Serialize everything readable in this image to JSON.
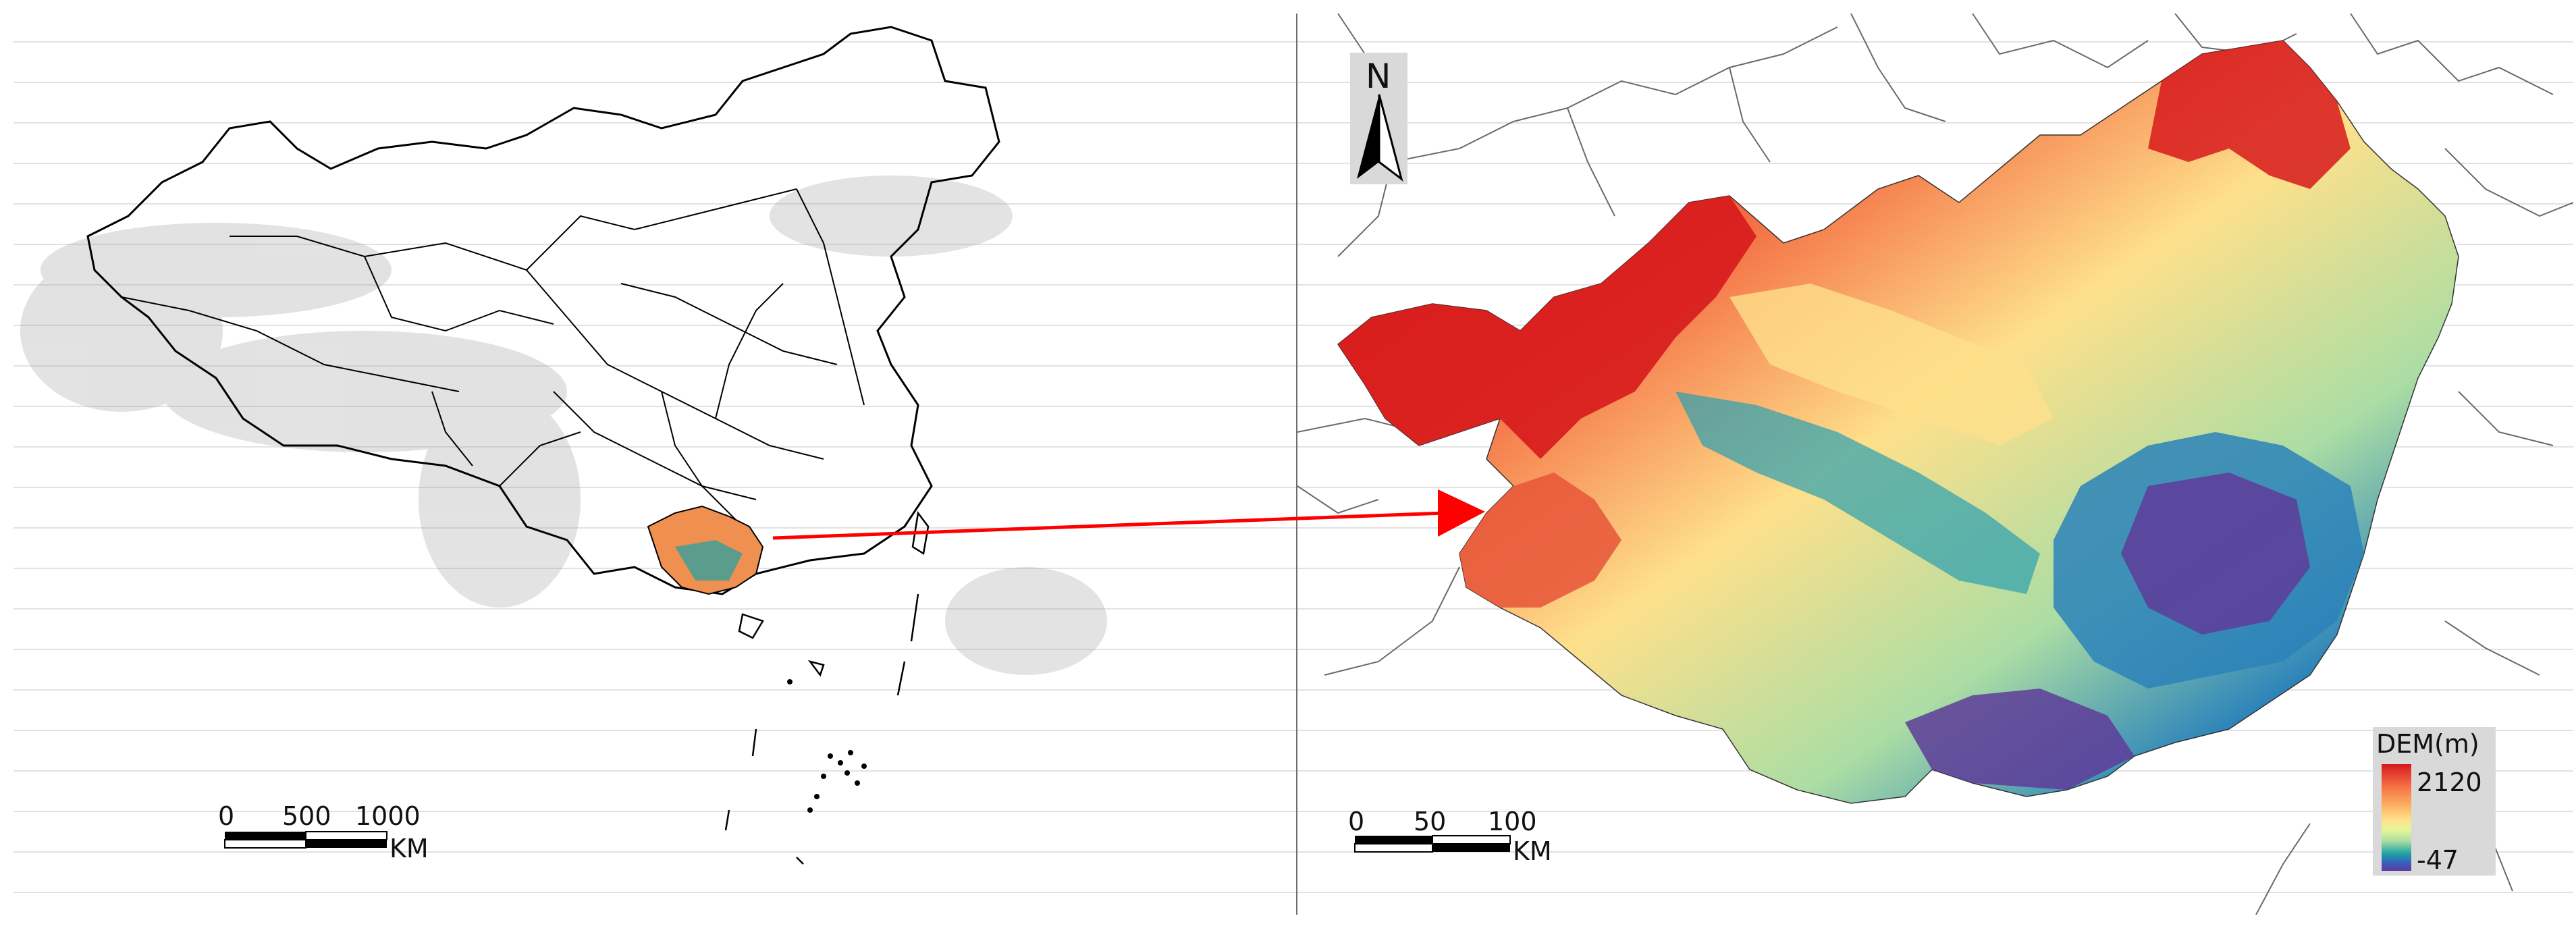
{
  "left_map": {
    "scale_bar": {
      "ticks": [
        "0",
        "500",
        "1000"
      ],
      "unit": "KM"
    }
  },
  "right_map": {
    "north_arrow": "N",
    "scale_bar": {
      "ticks": [
        "0",
        "50",
        "100"
      ],
      "unit": "KM"
    },
    "legend": {
      "title": "DEM(m)",
      "max": "2120",
      "min": "-47",
      "colors": [
        "#d7191c",
        "#f46d43",
        "#fdae61",
        "#fee08b",
        "#e6f598",
        "#abdda4",
        "#1aa3a3",
        "#3b5bbf",
        "#5e3c99"
      ]
    }
  },
  "arrow_color": "#ff0000"
}
